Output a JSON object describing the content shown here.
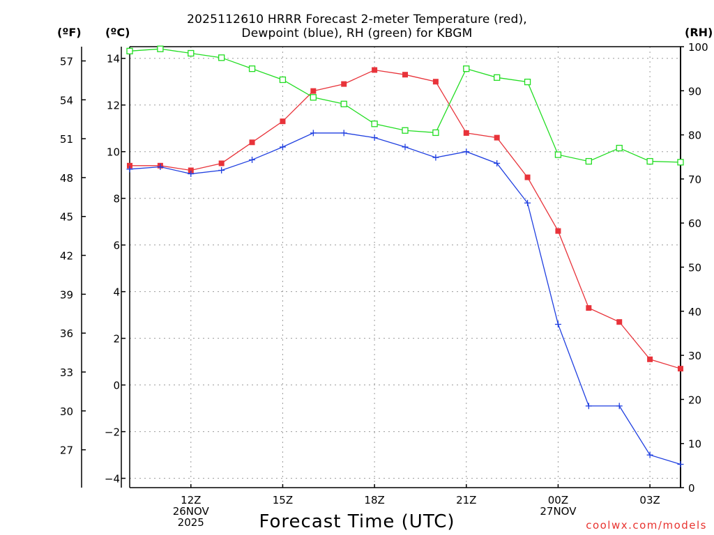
{
  "chart_data": {
    "type": "line",
    "title_line1": "2025112610 HRRR Forecast 2-meter Temperature (red),",
    "title_line2": "Dewpoint (blue), RH (green) for KBGM",
    "xlabel": "Forecast Time (UTC)",
    "unit_f": "(ºF)",
    "unit_c": "(ºC)",
    "unit_rh": "(RH)",
    "credit": "coolwx.com/models",
    "x_hours": [
      10,
      11,
      12,
      13,
      14,
      15,
      16,
      17,
      18,
      19,
      20,
      21,
      22,
      23,
      24,
      25,
      26,
      27,
      28
    ],
    "xlim": [
      10,
      28
    ],
    "x_ticks": [
      {
        "hour": 12,
        "lines": [
          "12Z",
          "26NOV",
          "2025"
        ]
      },
      {
        "hour": 15,
        "lines": [
          "15Z"
        ]
      },
      {
        "hour": 18,
        "lines": [
          "18Z"
        ]
      },
      {
        "hour": 21,
        "lines": [
          "21Z"
        ]
      },
      {
        "hour": 24,
        "lines": [
          "00Z",
          "27NOV"
        ]
      },
      {
        "hour": 27,
        "lines": [
          "03Z"
        ]
      }
    ],
    "c_axis": {
      "ylim": [
        -4.4,
        14.5
      ],
      "ticks": [
        -4,
        -2,
        0,
        2,
        4,
        6,
        8,
        10,
        12,
        14
      ],
      "labels": [
        "−4",
        "−2",
        "0",
        "2",
        "4",
        "6",
        "8",
        "10",
        "12",
        "14"
      ]
    },
    "f_axis": {
      "ticks": [
        27,
        30,
        33,
        36,
        39,
        42,
        45,
        48,
        51,
        54,
        57
      ],
      "labels": [
        "27",
        "30",
        "33",
        "36",
        "39",
        "42",
        "45",
        "48",
        "51",
        "54",
        "57"
      ]
    },
    "rh_axis": {
      "ylim": [
        0,
        100
      ],
      "ticks": [
        0,
        10,
        20,
        30,
        40,
        50,
        60,
        70,
        80,
        90,
        100
      ],
      "labels": [
        "0",
        "10",
        "20",
        "30",
        "40",
        "50",
        "60",
        "70",
        "80",
        "90",
        "100"
      ]
    },
    "series": [
      {
        "name": "Temperature",
        "unit": "C",
        "color": "#e8333a",
        "marker": "filled-square",
        "values": [
          9.4,
          9.4,
          9.2,
          9.5,
          10.4,
          11.3,
          12.6,
          12.9,
          13.5,
          13.3,
          13.0,
          10.8,
          10.6,
          8.9,
          6.6,
          3.3,
          2.7,
          1.1,
          0.7
        ]
      },
      {
        "name": "Dewpoint",
        "unit": "C",
        "color": "#1f3fe0",
        "marker": "plus",
        "values": [
          9.25,
          9.35,
          9.05,
          9.2,
          9.65,
          10.2,
          10.8,
          10.8,
          10.6,
          10.2,
          9.75,
          10.0,
          9.5,
          7.8,
          2.6,
          -0.9,
          -0.9,
          -3.0,
          -3.4
        ]
      },
      {
        "name": "RH",
        "unit": "percent",
        "color": "#22dd22",
        "marker": "open-square",
        "values": [
          99.0,
          99.5,
          98.5,
          97.5,
          95.0,
          92.5,
          88.5,
          87.0,
          82.5,
          81.0,
          80.5,
          95.0,
          93.0,
          92.0,
          75.5,
          74.0,
          77.0,
          74.0,
          73.8
        ]
      }
    ]
  }
}
